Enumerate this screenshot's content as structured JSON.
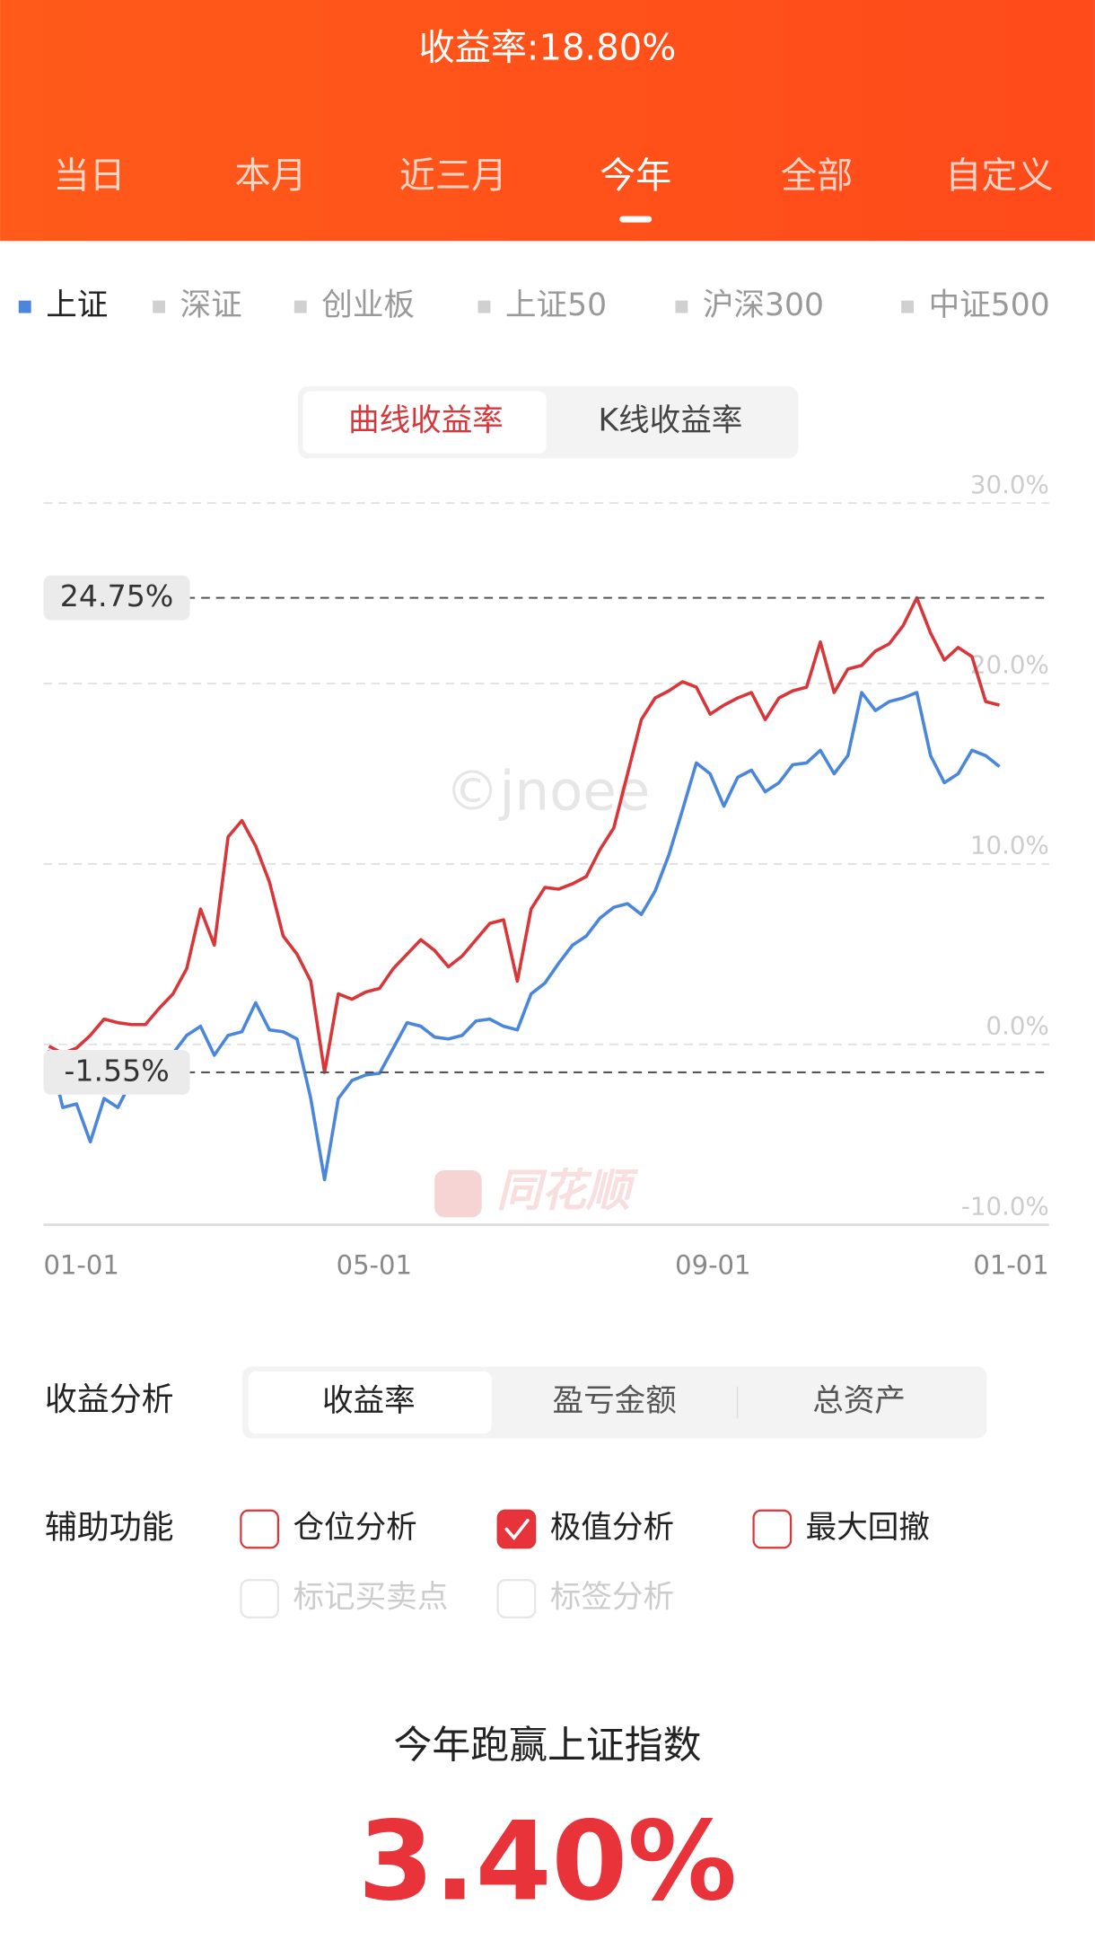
{
  "header": {
    "title": "收益率:18.80%",
    "tabs": [
      "当日",
      "本月",
      "近三月",
      "今年",
      "全部",
      "自定义"
    ],
    "active_tab": 3
  },
  "index_tabs": {
    "items": [
      "上证",
      "深证",
      "创业板",
      "上证50",
      "沪深300",
      "中证500"
    ],
    "active": 0
  },
  "chart_modes": {
    "items": [
      "曲线收益率",
      "K线收益率"
    ],
    "active": 0
  },
  "watermarks": [
    "©jnoee",
    "同花顺"
  ],
  "chart_data": {
    "type": "line",
    "x": [
      2,
      7,
      12,
      17,
      22,
      27,
      32,
      37,
      42,
      47,
      52,
      57,
      62,
      67,
      72,
      77,
      82,
      87,
      92,
      97,
      102,
      107,
      112,
      117,
      122,
      127,
      132,
      137,
      142,
      147,
      152,
      157,
      162,
      167,
      172,
      177,
      182,
      187,
      192,
      197,
      202,
      207,
      212,
      217,
      222,
      227,
      232,
      237,
      242,
      247,
      252,
      257,
      262,
      267,
      272,
      277,
      282,
      287,
      292,
      297,
      302,
      307,
      312,
      317,
      322,
      327,
      332,
      337,
      342,
      347
    ],
    "series": [
      {
        "color": "#d9363a",
        "values": [
          -0.1,
          -0.5,
          -0.2,
          0.5,
          1.4,
          1.2,
          1.1,
          1.1,
          2.0,
          2.8,
          4.2,
          7.5,
          5.5,
          11.5,
          12.4,
          11.0,
          9.0,
          6.0,
          5.0,
          3.5,
          -1.55,
          2.8,
          2.5,
          2.9,
          3.1,
          4.2,
          5.0,
          5.8,
          5.2,
          4.3,
          4.9,
          5.8,
          6.7,
          6.9,
          3.5,
          7.5,
          8.7,
          8.6,
          8.9,
          9.3,
          10.8,
          12.0,
          15.0,
          18.0,
          19.2,
          19.6,
          20.1,
          19.8,
          18.3,
          18.8,
          19.2,
          19.5,
          18.0,
          19.2,
          19.6,
          19.8,
          22.3,
          19.5,
          20.8,
          21.0,
          21.8,
          22.2,
          23.2,
          24.75,
          22.8,
          21.3,
          22.0,
          21.5,
          19.0,
          18.8
        ]
      },
      {
        "color": "#4a86db",
        "values": [
          -0.3,
          -3.5,
          -3.3,
          -5.4,
          -3.0,
          -3.5,
          -2.0,
          -1.7,
          -1.8,
          -0.5,
          0.5,
          1.0,
          -0.6,
          0.5,
          0.7,
          2.3,
          0.8,
          0.7,
          0.3,
          -3.0,
          -7.5,
          -3.0,
          -2.0,
          -1.7,
          -1.6,
          -0.2,
          1.2,
          1.0,
          0.4,
          0.3,
          0.5,
          1.3,
          1.4,
          1.0,
          0.8,
          2.8,
          3.4,
          4.5,
          5.5,
          6.0,
          7.0,
          7.6,
          7.8,
          7.2,
          8.5,
          10.5,
          13.0,
          15.6,
          15.0,
          13.2,
          14.8,
          15.2,
          14.0,
          14.5,
          15.5,
          15.6,
          16.3,
          15.0,
          16.0,
          19.5,
          18.5,
          19.0,
          19.2,
          19.5,
          16.0,
          14.5,
          15.0,
          16.3,
          16.0,
          15.4
        ]
      }
    ],
    "xlim": [
      0,
      365
    ],
    "xticks": [
      {
        "value": 0,
        "label": "01-01"
      },
      {
        "value": 120,
        "label": "05-01"
      },
      {
        "value": 243,
        "label": "09-01"
      },
      {
        "value": 365,
        "label": "01-01"
      }
    ],
    "ylim": [
      -10,
      30
    ],
    "yticks": [
      {
        "value": -10,
        "label": "-10.0%"
      },
      {
        "value": 0,
        "label": "0.0%"
      },
      {
        "value": 10,
        "label": "10.0%"
      },
      {
        "value": 20,
        "label": "20.0%"
      },
      {
        "value": 30,
        "label": "30.0%"
      }
    ],
    "grid": true,
    "annotations": [
      {
        "value": 24.75,
        "label": "24.75%"
      },
      {
        "value": -1.55,
        "label": "-1.55%"
      }
    ]
  },
  "analysis": {
    "label": "收益分析",
    "options": [
      "收益率",
      "盈亏金额",
      "总资产"
    ],
    "active": 0
  },
  "aux": {
    "label": "辅助功能",
    "options": [
      {
        "label": "仓位分析",
        "checked": false,
        "enabled": true
      },
      {
        "label": "极值分析",
        "checked": true,
        "enabled": true
      },
      {
        "label": "最大回撤",
        "checked": false,
        "enabled": true
      },
      {
        "label": "标记买卖点",
        "checked": false,
        "enabled": false
      },
      {
        "label": "标签分析",
        "checked": false,
        "enabled": false
      }
    ]
  },
  "summary": {
    "title": "今年跑赢上证指数",
    "value": "3.40%"
  }
}
